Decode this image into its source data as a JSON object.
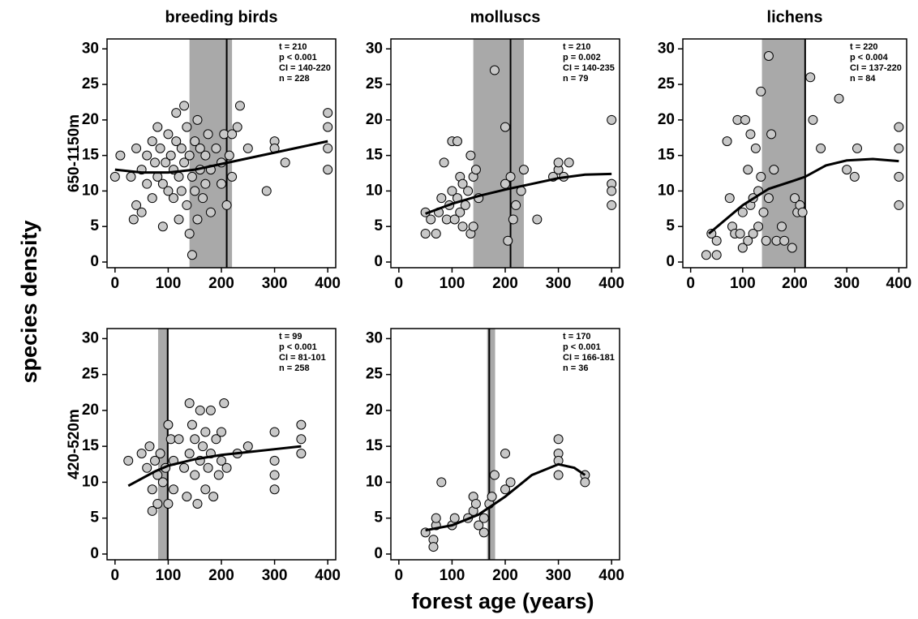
{
  "ylabel": "species density",
  "xlabel": "forest age (years)",
  "chart_data": [
    {
      "type": "scatter",
      "title": "breeding birds",
      "row_label": "650-1150m",
      "annotations": [
        "t = 210",
        "p < 0.001",
        "CI = 140-220",
        "n = 228"
      ],
      "t": 210,
      "ci": [
        140,
        220
      ],
      "xlim": [
        -15,
        415
      ],
      "ylim": [
        -0.8,
        31.4
      ],
      "xticks": [
        0,
        100,
        200,
        300,
        400
      ],
      "yticks": [
        0,
        5,
        10,
        15,
        20,
        25,
        30
      ],
      "x": [
        0,
        10,
        30,
        35,
        40,
        40,
        50,
        50,
        60,
        60,
        70,
        70,
        75,
        80,
        80,
        85,
        90,
        90,
        95,
        100,
        100,
        105,
        110,
        110,
        115,
        115,
        120,
        120,
        125,
        125,
        130,
        130,
        135,
        135,
        140,
        140,
        145,
        145,
        150,
        150,
        155,
        155,
        160,
        160,
        165,
        170,
        170,
        175,
        180,
        180,
        190,
        200,
        200,
        205,
        210,
        215,
        220,
        220,
        230,
        235,
        250,
        285,
        300,
        300,
        320,
        400,
        400,
        400,
        400
      ],
      "values": [
        12,
        15,
        12,
        6,
        8,
        16,
        13,
        7,
        15,
        11,
        17,
        9,
        14,
        19,
        12,
        16,
        5,
        11,
        14,
        18,
        10,
        15,
        13,
        9,
        21,
        17,
        12,
        6,
        16,
        10,
        22,
        14,
        19,
        8,
        15,
        4,
        1,
        12,
        17,
        10,
        20,
        6,
        13,
        16,
        9,
        15,
        11,
        18,
        13,
        7,
        16,
        11,
        14,
        18,
        8,
        15,
        12,
        18,
        19,
        22,
        16,
        10,
        17,
        16,
        14,
        21,
        19,
        16,
        13
      ],
      "trend": {
        "x": [
          0,
          50,
          100,
          150,
          200,
          250,
          300,
          350,
          400
        ],
        "values": [
          13,
          12.6,
          12.6,
          13,
          13.8,
          14.6,
          15.4,
          16.2,
          17
        ]
      }
    },
    {
      "type": "scatter",
      "title": "molluscs",
      "annotations": [
        "t =  210",
        "p = 0.002",
        "CI = 140-235",
        "n = 79"
      ],
      "t": 210,
      "ci": [
        140,
        235
      ],
      "xlim": [
        -15,
        415
      ],
      "ylim": [
        -0.8,
        31.4
      ],
      "xticks": [
        0,
        100,
        200,
        300,
        400
      ],
      "yticks": [
        0,
        5,
        10,
        15,
        20,
        25,
        30
      ],
      "x": [
        50,
        50,
        60,
        70,
        75,
        80,
        85,
        90,
        95,
        100,
        100,
        105,
        110,
        110,
        115,
        115,
        120,
        120,
        125,
        130,
        135,
        135,
        140,
        140,
        145,
        150,
        180,
        200,
        200,
        205,
        210,
        215,
        220,
        230,
        235,
        260,
        290,
        300,
        300,
        310,
        320,
        400,
        400,
        400,
        400
      ],
      "values": [
        7,
        4,
        6,
        4,
        7,
        9,
        14,
        6,
        8,
        17,
        10,
        6,
        9,
        17,
        12,
        7,
        11,
        5,
        8,
        10,
        4,
        15,
        12,
        5,
        13,
        9,
        27,
        19,
        11,
        3,
        12,
        6,
        8,
        10,
        13,
        6,
        12,
        13,
        14,
        12,
        14,
        20,
        11,
        10,
        8
      ],
      "trend": {
        "x": [
          50,
          100,
          150,
          200,
          250,
          300,
          350,
          400
        ],
        "values": [
          6.8,
          8.2,
          9.3,
          10.2,
          11,
          11.8,
          12.3,
          12.4
        ]
      }
    },
    {
      "type": "scatter",
      "title": "lichens",
      "annotations": [
        "t = 220",
        "p < 0.004",
        "CI = 137-220",
        "n = 84"
      ],
      "t": 220,
      "ci": [
        137,
        220
      ],
      "xlim": [
        -15,
        415
      ],
      "ylim": [
        -0.8,
        31.4
      ],
      "xticks": [
        0,
        100,
        200,
        300,
        400
      ],
      "yticks": [
        0,
        5,
        10,
        15,
        20,
        25,
        30
      ],
      "x": [
        30,
        40,
        50,
        50,
        70,
        75,
        80,
        85,
        90,
        95,
        100,
        100,
        105,
        110,
        110,
        115,
        115,
        120,
        120,
        125,
        130,
        130,
        135,
        135,
        140,
        145,
        150,
        150,
        155,
        160,
        165,
        175,
        180,
        195,
        200,
        205,
        210,
        215,
        230,
        235,
        250,
        285,
        300,
        315,
        320,
        400,
        400,
        400,
        400
      ],
      "values": [
        1,
        4,
        1,
        3,
        17,
        9,
        5,
        4,
        20,
        4,
        7,
        2,
        20,
        13,
        3,
        8,
        18,
        9,
        4,
        16,
        10,
        5,
        24,
        12,
        7,
        3,
        29,
        9,
        18,
        13,
        3,
        5,
        3,
        2,
        9,
        7,
        8,
        7,
        26,
        20,
        16,
        23,
        13,
        12,
        16,
        19,
        16,
        12,
        8
      ],
      "trend": {
        "x": [
          35,
          100,
          150,
          200,
          220,
          260,
          300,
          350,
          400
        ],
        "values": [
          4,
          8,
          10.3,
          11.5,
          12,
          13.6,
          14.3,
          14.5,
          14.2
        ]
      }
    },
    {
      "type": "scatter",
      "row_label": "420-520m",
      "annotations": [
        "t = 99",
        "p < 0.001",
        "CI = 81-101",
        "n = 258"
      ],
      "t": 99,
      "ci": [
        81,
        101
      ],
      "xlim": [
        -15,
        415
      ],
      "ylim": [
        -0.8,
        31.4
      ],
      "xticks": [
        0,
        100,
        200,
        300,
        400
      ],
      "yticks": [
        0,
        5,
        10,
        15,
        20,
        25,
        30
      ],
      "x": [
        25,
        50,
        60,
        65,
        70,
        70,
        75,
        80,
        80,
        85,
        90,
        95,
        100,
        100,
        105,
        110,
        110,
        120,
        130,
        135,
        140,
        140,
        145,
        150,
        150,
        155,
        160,
        160,
        165,
        170,
        170,
        175,
        180,
        180,
        185,
        190,
        195,
        200,
        200,
        205,
        210,
        230,
        250,
        300,
        300,
        300,
        300,
        350,
        350,
        350
      ],
      "values": [
        13,
        14,
        12,
        15,
        6,
        9,
        13,
        11,
        7,
        14,
        10,
        12,
        18,
        7,
        16,
        13,
        9,
        16,
        12,
        8,
        21,
        14,
        18,
        11,
        16,
        7,
        20,
        13,
        15,
        17,
        9,
        12,
        20,
        14,
        8,
        16,
        11,
        17,
        13,
        21,
        12,
        14,
        15,
        17,
        13,
        9,
        11,
        18,
        16,
        14
      ],
      "trend": {
        "x": [
          25,
          75,
          100,
          150,
          200,
          250,
          300,
          350
        ],
        "values": [
          9.5,
          11.5,
          12.3,
          13.2,
          13.8,
          14.2,
          14.6,
          15
        ]
      }
    },
    {
      "type": "scatter",
      "annotations": [
        "t = 170",
        "p < 0.001",
        "CI = 166-181",
        "n = 36"
      ],
      "t": 170,
      "ci": [
        166,
        181
      ],
      "xlim": [
        -15,
        415
      ],
      "ylim": [
        -0.8,
        31.4
      ],
      "xticks": [
        0,
        100,
        200,
        300,
        400
      ],
      "yticks": [
        0,
        5,
        10,
        15,
        20,
        25,
        30
      ],
      "x": [
        50,
        65,
        65,
        70,
        70,
        80,
        100,
        105,
        130,
        140,
        140,
        145,
        150,
        160,
        160,
        170,
        175,
        180,
        200,
        200,
        210,
        300,
        300,
        300,
        300,
        350,
        350
      ],
      "values": [
        3,
        2,
        1,
        4,
        5,
        10,
        4,
        5,
        5,
        6,
        8,
        7,
        4,
        3,
        5,
        7,
        8,
        11,
        14,
        9,
        10,
        16,
        14,
        13,
        11,
        11,
        10
      ],
      "trend": {
        "x": [
          50,
          100,
          150,
          200,
          250,
          300,
          330,
          350
        ],
        "values": [
          3.3,
          4,
          5.5,
          8,
          11,
          12.5,
          12,
          11
        ]
      }
    }
  ]
}
